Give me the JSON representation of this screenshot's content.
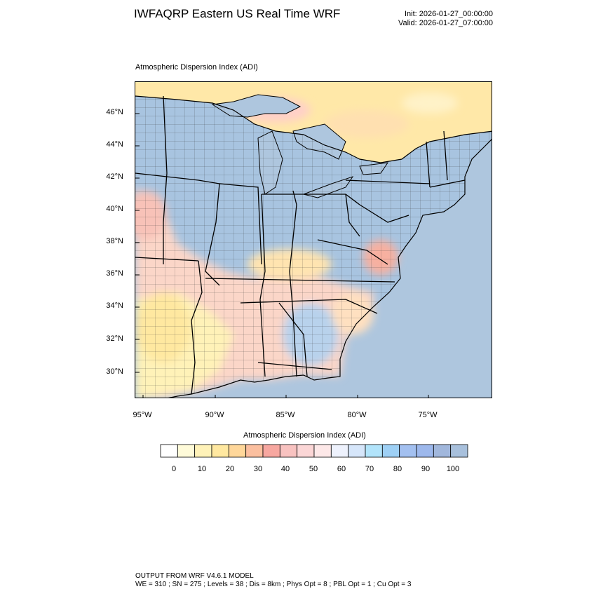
{
  "header": {
    "title": "IWFAQRP Eastern US Real Time WRF",
    "init": "Init: 2026-01-27_00:00:00",
    "valid": "Valid: 2026-01-27_07:00:00"
  },
  "map": {
    "subtitle": "Atmospheric Dispersion Index   (ADI)",
    "lat_ticks": [
      "46°N",
      "44°N",
      "42°N",
      "40°N",
      "38°N",
      "36°N",
      "34°N",
      "32°N",
      "30°N"
    ],
    "lon_ticks": [
      "95°W",
      "90°W",
      "85°W",
      "80°W",
      "75°W"
    ],
    "ocean_color": "#aec6de",
    "land_high_color": "#a8c4e0"
  },
  "colorbar": {
    "title": "Atmospheric Dispersion Index  (ADI)",
    "colors": [
      "#ffffff",
      "#fffbd9",
      "#fff2b8",
      "#ffe8a0",
      "#ffd79a",
      "#fbbf9f",
      "#f7a7a0",
      "#f8c2c0",
      "#fbd6d6",
      "#fde8e8",
      "#eef2fd",
      "#d6e6fa",
      "#b2e4fb",
      "#9ed0f5",
      "#a3c0f0",
      "#9db8ec",
      "#a1b7dc",
      "#a8c0dc"
    ],
    "labels": [
      "0",
      "10",
      "20",
      "30",
      "40",
      "50",
      "60",
      "70",
      "80",
      "90",
      "100"
    ]
  },
  "footer": {
    "line1": "OUTPUT FROM WRF V4.6.1 MODEL",
    "line2": "WE = 310 ; SN = 275 ; Levels = 38 ; Dis = 8km ; Phys Opt = 8 ; PBL Opt = 1 ; Cu Opt = 3"
  }
}
